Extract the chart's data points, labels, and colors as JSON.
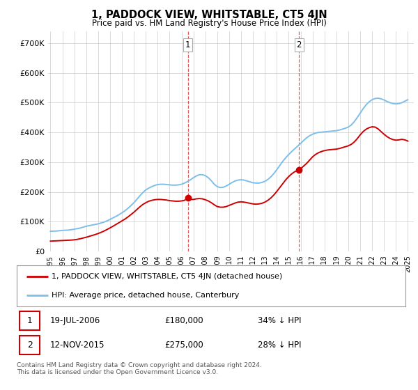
{
  "title": "1, PADDOCK VIEW, WHITSTABLE, CT5 4JN",
  "subtitle": "Price paid vs. HM Land Registry's House Price Index (HPI)",
  "ylabel_ticks": [
    "£0",
    "£100K",
    "£200K",
    "£300K",
    "£400K",
    "£500K",
    "£600K",
    "£700K"
  ],
  "ytick_values": [
    0,
    100000,
    200000,
    300000,
    400000,
    500000,
    600000,
    700000
  ],
  "ylim": [
    0,
    740000
  ],
  "xlim_start": 1994.8,
  "xlim_end": 2025.5,
  "sale1_date": 2006.54,
  "sale1_price": 180000,
  "sale1_label": "1",
  "sale2_date": 2015.87,
  "sale2_price": 275000,
  "sale2_label": "2",
  "hpi_color": "#7bbfea",
  "sold_color": "#cc0000",
  "vline_color": "#cc0000",
  "background_color": "#ffffff",
  "grid_color": "#cccccc",
  "legend_label_sold": "1, PADDOCK VIEW, WHITSTABLE, CT5 4JN (detached house)",
  "legend_label_hpi": "HPI: Average price, detached house, Canterbury",
  "footer": "Contains HM Land Registry data © Crown copyright and database right 2024.\nThis data is licensed under the Open Government Licence v3.0.",
  "hpi_data": [
    [
      1995.0,
      68000
    ],
    [
      1995.25,
      68500
    ],
    [
      1995.5,
      69000
    ],
    [
      1995.75,
      70000
    ],
    [
      1996.0,
      71000
    ],
    [
      1996.25,
      71500
    ],
    [
      1996.5,
      72000
    ],
    [
      1996.75,
      73500
    ],
    [
      1997.0,
      75000
    ],
    [
      1997.25,
      77000
    ],
    [
      1997.5,
      79000
    ],
    [
      1997.75,
      82000
    ],
    [
      1998.0,
      85000
    ],
    [
      1998.25,
      87000
    ],
    [
      1998.5,
      89000
    ],
    [
      1998.75,
      91000
    ],
    [
      1999.0,
      93000
    ],
    [
      1999.25,
      96000
    ],
    [
      1999.5,
      99000
    ],
    [
      1999.75,
      103000
    ],
    [
      2000.0,
      108000
    ],
    [
      2000.25,
      113000
    ],
    [
      2000.5,
      118000
    ],
    [
      2000.75,
      124000
    ],
    [
      2001.0,
      130000
    ],
    [
      2001.25,
      137000
    ],
    [
      2001.5,
      145000
    ],
    [
      2001.75,
      154000
    ],
    [
      2002.0,
      164000
    ],
    [
      2002.25,
      175000
    ],
    [
      2002.5,
      187000
    ],
    [
      2002.75,
      198000
    ],
    [
      2003.0,
      207000
    ],
    [
      2003.25,
      213000
    ],
    [
      2003.5,
      218000
    ],
    [
      2003.75,
      222000
    ],
    [
      2004.0,
      225000
    ],
    [
      2004.25,
      226000
    ],
    [
      2004.5,
      226000
    ],
    [
      2004.75,
      225000
    ],
    [
      2005.0,
      224000
    ],
    [
      2005.25,
      223000
    ],
    [
      2005.5,
      223000
    ],
    [
      2005.75,
      224000
    ],
    [
      2006.0,
      226000
    ],
    [
      2006.25,
      230000
    ],
    [
      2006.5,
      235000
    ],
    [
      2006.75,
      241000
    ],
    [
      2007.0,
      248000
    ],
    [
      2007.25,
      254000
    ],
    [
      2007.5,
      258000
    ],
    [
      2007.75,
      258000
    ],
    [
      2008.0,
      255000
    ],
    [
      2008.25,
      248000
    ],
    [
      2008.5,
      238000
    ],
    [
      2008.75,
      226000
    ],
    [
      2009.0,
      218000
    ],
    [
      2009.25,
      215000
    ],
    [
      2009.5,
      216000
    ],
    [
      2009.75,
      220000
    ],
    [
      2010.0,
      226000
    ],
    [
      2010.25,
      232000
    ],
    [
      2010.5,
      237000
    ],
    [
      2010.75,
      240000
    ],
    [
      2011.0,
      241000
    ],
    [
      2011.25,
      240000
    ],
    [
      2011.5,
      237000
    ],
    [
      2011.75,
      234000
    ],
    [
      2012.0,
      231000
    ],
    [
      2012.25,
      230000
    ],
    [
      2012.5,
      230000
    ],
    [
      2012.75,
      232000
    ],
    [
      2013.0,
      236000
    ],
    [
      2013.25,
      242000
    ],
    [
      2013.5,
      251000
    ],
    [
      2013.75,
      262000
    ],
    [
      2014.0,
      275000
    ],
    [
      2014.25,
      289000
    ],
    [
      2014.5,
      303000
    ],
    [
      2014.75,
      315000
    ],
    [
      2015.0,
      326000
    ],
    [
      2015.25,
      336000
    ],
    [
      2015.5,
      345000
    ],
    [
      2015.75,
      354000
    ],
    [
      2016.0,
      363000
    ],
    [
      2016.25,
      373000
    ],
    [
      2016.5,
      382000
    ],
    [
      2016.75,
      389000
    ],
    [
      2017.0,
      394000
    ],
    [
      2017.25,
      398000
    ],
    [
      2017.5,
      400000
    ],
    [
      2017.75,
      401000
    ],
    [
      2018.0,
      402000
    ],
    [
      2018.25,
      403000
    ],
    [
      2018.5,
      404000
    ],
    [
      2018.75,
      405000
    ],
    [
      2019.0,
      406000
    ],
    [
      2019.25,
      408000
    ],
    [
      2019.5,
      411000
    ],
    [
      2019.75,
      414000
    ],
    [
      2020.0,
      418000
    ],
    [
      2020.25,
      425000
    ],
    [
      2020.5,
      436000
    ],
    [
      2020.75,
      450000
    ],
    [
      2021.0,
      465000
    ],
    [
      2021.25,
      480000
    ],
    [
      2021.5,
      493000
    ],
    [
      2021.75,
      503000
    ],
    [
      2022.0,
      510000
    ],
    [
      2022.25,
      514000
    ],
    [
      2022.5,
      515000
    ],
    [
      2022.75,
      513000
    ],
    [
      2023.0,
      509000
    ],
    [
      2023.25,
      504000
    ],
    [
      2023.5,
      500000
    ],
    [
      2023.75,
      497000
    ],
    [
      2024.0,
      496000
    ],
    [
      2024.25,
      497000
    ],
    [
      2024.5,
      500000
    ],
    [
      2024.75,
      505000
    ],
    [
      2025.0,
      510000
    ]
  ],
  "sold_data": [
    [
      1995.0,
      35000
    ],
    [
      1995.25,
      35500
    ],
    [
      1995.5,
      36000
    ],
    [
      1995.75,
      36500
    ],
    [
      1996.0,
      37000
    ],
    [
      1996.25,
      37500
    ],
    [
      1996.5,
      38000
    ],
    [
      1996.75,
      38500
    ],
    [
      1997.0,
      39500
    ],
    [
      1997.25,
      41000
    ],
    [
      1997.5,
      43000
    ],
    [
      1997.75,
      45500
    ],
    [
      1998.0,
      48000
    ],
    [
      1998.25,
      51000
    ],
    [
      1998.5,
      54000
    ],
    [
      1998.75,
      57000
    ],
    [
      1999.0,
      60500
    ],
    [
      1999.25,
      64500
    ],
    [
      1999.5,
      69000
    ],
    [
      1999.75,
      74000
    ],
    [
      2000.0,
      79500
    ],
    [
      2000.25,
      85000
    ],
    [
      2000.5,
      91000
    ],
    [
      2000.75,
      97000
    ],
    [
      2001.0,
      103000
    ],
    [
      2001.25,
      109000
    ],
    [
      2001.5,
      116000
    ],
    [
      2001.75,
      124000
    ],
    [
      2002.0,
      132000
    ],
    [
      2002.25,
      141000
    ],
    [
      2002.5,
      150000
    ],
    [
      2002.75,
      158000
    ],
    [
      2003.0,
      164000
    ],
    [
      2003.25,
      169000
    ],
    [
      2003.5,
      172000
    ],
    [
      2003.75,
      174000
    ],
    [
      2004.0,
      175000
    ],
    [
      2004.25,
      175000
    ],
    [
      2004.5,
      174000
    ],
    [
      2004.75,
      173000
    ],
    [
      2005.0,
      171000
    ],
    [
      2005.25,
      170000
    ],
    [
      2005.5,
      169000
    ],
    [
      2005.75,
      169000
    ],
    [
      2006.0,
      170000
    ],
    [
      2006.25,
      172000
    ],
    [
      2006.54,
      180000
    ],
    [
      2006.75,
      175000
    ],
    [
      2007.0,
      175000
    ],
    [
      2007.25,
      177000
    ],
    [
      2007.5,
      178000
    ],
    [
      2007.75,
      177000
    ],
    [
      2008.0,
      174000
    ],
    [
      2008.25,
      170000
    ],
    [
      2008.5,
      164000
    ],
    [
      2008.75,
      157000
    ],
    [
      2009.0,
      151000
    ],
    [
      2009.25,
      149000
    ],
    [
      2009.5,
      149000
    ],
    [
      2009.75,
      151000
    ],
    [
      2010.0,
      155000
    ],
    [
      2010.25,
      159000
    ],
    [
      2010.5,
      163000
    ],
    [
      2010.75,
      166000
    ],
    [
      2011.0,
      167000
    ],
    [
      2011.25,
      166000
    ],
    [
      2011.5,
      164000
    ],
    [
      2011.75,
      162000
    ],
    [
      2012.0,
      160000
    ],
    [
      2012.25,
      159000
    ],
    [
      2012.5,
      160000
    ],
    [
      2012.75,
      162000
    ],
    [
      2013.0,
      166000
    ],
    [
      2013.25,
      172000
    ],
    [
      2013.5,
      180000
    ],
    [
      2013.75,
      190000
    ],
    [
      2014.0,
      202000
    ],
    [
      2014.25,
      215000
    ],
    [
      2014.5,
      228000
    ],
    [
      2014.75,
      241000
    ],
    [
      2015.0,
      252000
    ],
    [
      2015.25,
      261000
    ],
    [
      2015.5,
      268000
    ],
    [
      2015.87,
      275000
    ],
    [
      2016.0,
      278000
    ],
    [
      2016.25,
      287000
    ],
    [
      2016.5,
      296000
    ],
    [
      2016.75,
      307000
    ],
    [
      2017.0,
      318000
    ],
    [
      2017.25,
      326000
    ],
    [
      2017.5,
      332000
    ],
    [
      2017.75,
      336000
    ],
    [
      2018.0,
      339000
    ],
    [
      2018.25,
      341000
    ],
    [
      2018.5,
      342000
    ],
    [
      2018.75,
      343000
    ],
    [
      2019.0,
      344000
    ],
    [
      2019.25,
      346000
    ],
    [
      2019.5,
      349000
    ],
    [
      2019.75,
      352000
    ],
    [
      2020.0,
      355000
    ],
    [
      2020.25,
      360000
    ],
    [
      2020.5,
      368000
    ],
    [
      2020.75,
      379000
    ],
    [
      2021.0,
      392000
    ],
    [
      2021.25,
      403000
    ],
    [
      2021.5,
      411000
    ],
    [
      2021.75,
      416000
    ],
    [
      2022.0,
      419000
    ],
    [
      2022.25,
      418000
    ],
    [
      2022.5,
      412000
    ],
    [
      2022.75,
      403000
    ],
    [
      2023.0,
      394000
    ],
    [
      2023.25,
      386000
    ],
    [
      2023.5,
      380000
    ],
    [
      2023.75,
      376000
    ],
    [
      2024.0,
      374000
    ],
    [
      2024.25,
      375000
    ],
    [
      2024.5,
      377000
    ],
    [
      2024.75,
      375000
    ],
    [
      2025.0,
      371000
    ]
  ]
}
